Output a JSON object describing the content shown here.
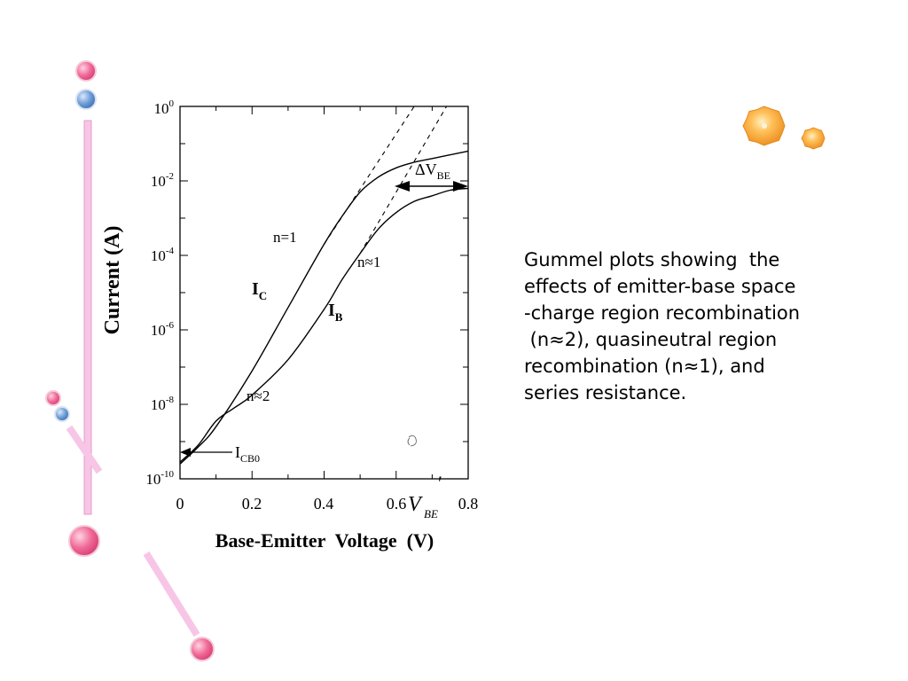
{
  "caption": {
    "lines": [
      "Gummel plots showing  the",
      "effects of emitter-base space",
      "-charge region recombination",
      " (n≈2), quasineutral region",
      "recombination (n≈1), and",
      "series resistance."
    ]
  },
  "colors": {
    "bead_pink": "#f06b98",
    "bead_blue": "#6f9fd8",
    "rod_pink": "#f7c6e6",
    "sun_orange": "#f5a032"
  },
  "chart_data": {
    "type": "line",
    "xlabel": "Base-Emitter  Voltage  (V)",
    "ylabel": "Current (A)",
    "xlim": [
      0,
      0.8
    ],
    "ylim_log10": [
      -10,
      0
    ],
    "y_scale": "log",
    "grid": false,
    "x_ticks": [
      {
        "value": 0,
        "label": "0"
      },
      {
        "value": 0.2,
        "label": "0.2"
      },
      {
        "value": 0.4,
        "label": "0.4"
      },
      {
        "value": 0.6,
        "label": "0.6"
      },
      {
        "value": 0.8,
        "label": "0.8"
      }
    ],
    "y_ticks": [
      {
        "exp": -10,
        "base": "10",
        "sup": "-10"
      },
      {
        "exp": -8,
        "base": "10",
        "sup": "-8"
      },
      {
        "exp": -6,
        "base": "10",
        "sup": "-6"
      },
      {
        "exp": -4,
        "base": "10",
        "sup": "-4"
      },
      {
        "exp": -2,
        "base": "10",
        "sup": "-2"
      },
      {
        "exp": 0,
        "base": "10",
        "sup": "0"
      }
    ],
    "series": [
      {
        "name": "I_C",
        "x": [
          0.0,
          0.05,
          0.1,
          0.2,
          0.3,
          0.4,
          0.45,
          0.5,
          0.55,
          0.6,
          0.65,
          0.7,
          0.75,
          0.8
        ],
        "log10_y": [
          -9.6,
          -9.15,
          -8.6,
          -7.1,
          -5.4,
          -3.7,
          -2.95,
          -2.3,
          -1.9,
          -1.65,
          -1.5,
          -1.4,
          -1.3,
          -1.2
        ]
      },
      {
        "name": "I_B",
        "x": [
          0.0,
          0.05,
          0.1,
          0.15,
          0.2,
          0.3,
          0.4,
          0.45,
          0.5,
          0.55,
          0.6,
          0.65,
          0.7,
          0.75,
          0.8
        ],
        "log10_y": [
          -9.55,
          -9.1,
          -8.45,
          -8.1,
          -7.75,
          -6.8,
          -5.45,
          -4.65,
          -3.95,
          -3.3,
          -2.85,
          -2.55,
          -2.4,
          -2.25,
          -2.2
        ]
      }
    ],
    "asymptotes": [
      {
        "name": "I_C ideal",
        "x": [
          0.4,
          0.65
        ],
        "log10_y": [
          -3.7,
          0.0
        ]
      },
      {
        "name": "I_B ideal",
        "x": [
          0.5,
          0.74
        ],
        "log10_y": [
          -3.95,
          0.0
        ]
      }
    ],
    "annotations": {
      "n1_ic": "n=1",
      "n1_ib": "n≈1",
      "n2": "n≈2",
      "ic_main": "I",
      "ic_sub": "C",
      "ib_main": "I",
      "ib_sub": "B",
      "icbo_main": "I",
      "icbo_sub": "CB0",
      "dvbe_main": "ΔV",
      "dvbe_sub": "BE",
      "vbe_main": "V",
      "vbe_sub": "BE",
      "vbe_prime": "′"
    }
  }
}
